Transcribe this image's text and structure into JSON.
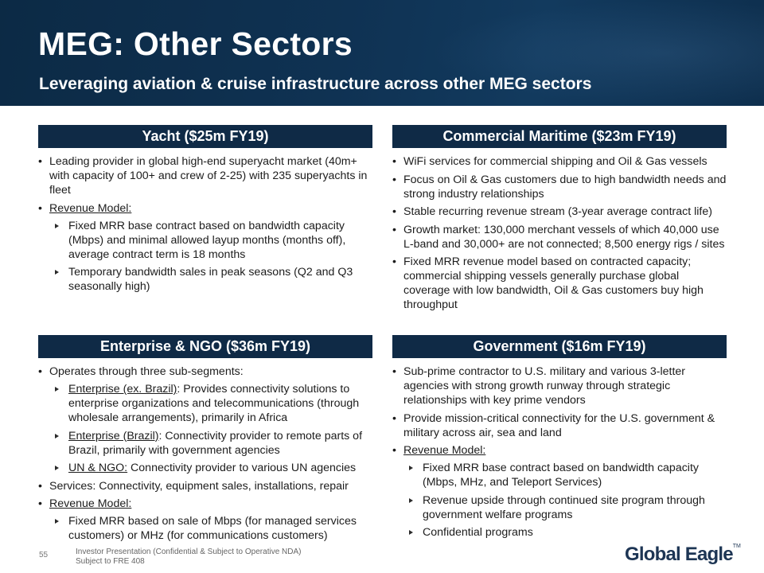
{
  "header": {
    "title": "MEG: Other Sectors",
    "subtitle": "Leveraging aviation & cruise infrastructure across other MEG sectors"
  },
  "panels": {
    "yacht": {
      "heading": "Yacht ($25m FY19)",
      "b1": "Leading provider in global high-end superyacht market (40m+ with capacity of 100+ and crew of 2-25) with 235 superyachts in fleet",
      "b2": "Revenue Model:",
      "b2_subs": [
        "Fixed MRR base contract based on bandwidth capacity (Mbps) and minimal allowed layup months (months off), average contract term is 18 months",
        "Temporary bandwidth sales in peak seasons (Q2 and Q3 seasonally high)"
      ]
    },
    "maritime": {
      "heading": "Commercial Maritime ($23m FY19)",
      "bullets": [
        "WiFi services for commercial shipping and Oil & Gas vessels",
        "Focus on Oil & Gas customers due to high bandwidth needs and strong industry relationships",
        "Stable recurring revenue stream (3-year average contract life)",
        "Growth market: 130,000 merchant vessels of which 40,000 use L-band and 30,000+ are not connected; 8,500 energy rigs / sites",
        "Fixed MRR revenue model based on contracted capacity; commercial shipping vessels generally purchase global coverage with low bandwidth, Oil & Gas customers buy high throughput"
      ]
    },
    "enterprise": {
      "heading": "Enterprise & NGO ($36m FY19)",
      "b1": "Operates through three sub-segments:",
      "s1_label": "Enterprise (ex. Brazil)",
      "s1_text": ": Provides connectivity solutions to enterprise organizations and telecommunications (through wholesale arrangements), primarily in Africa",
      "s2_label": "Enterprise (Brazil)",
      "s2_text": ": Connectivity provider to remote parts of Brazil, primarily with government agencies",
      "s3_label": "UN & NGO:",
      "s3_text": " Connectivity provider to various UN agencies",
      "b2": "Services: Connectivity, equipment sales, installations, repair",
      "b3": "Revenue Model:",
      "b3_sub": "Fixed MRR based on sale of Mbps (for managed services customers) or MHz (for communications customers)"
    },
    "government": {
      "heading": "Government ($16m FY19)",
      "b1": "Sub-prime contractor to U.S. military and various 3-letter agencies with strong growth runway through strategic relationships with key prime vendors",
      "b2": "Provide mission-critical connectivity for the U.S. government & military across air, sea and land",
      "b3": "Revenue Model:",
      "b3_subs": [
        "Fixed MRR base contract based on bandwidth capacity (Mbps, MHz, and Teleport Services)",
        "Revenue upside through continued site program through government welfare programs",
        "Confidential programs"
      ]
    }
  },
  "footer": {
    "page_number": "55",
    "line1": "Investor Presentation (Confidential & Subject to Operative NDA)",
    "line2": "Subject to FRE 408",
    "logo_text": "Global Eagle",
    "logo_tm": "TM"
  },
  "colors": {
    "header_bg": "#0f3253",
    "panel_head_bg": "#0f2a46",
    "logo": "#1d3554"
  }
}
